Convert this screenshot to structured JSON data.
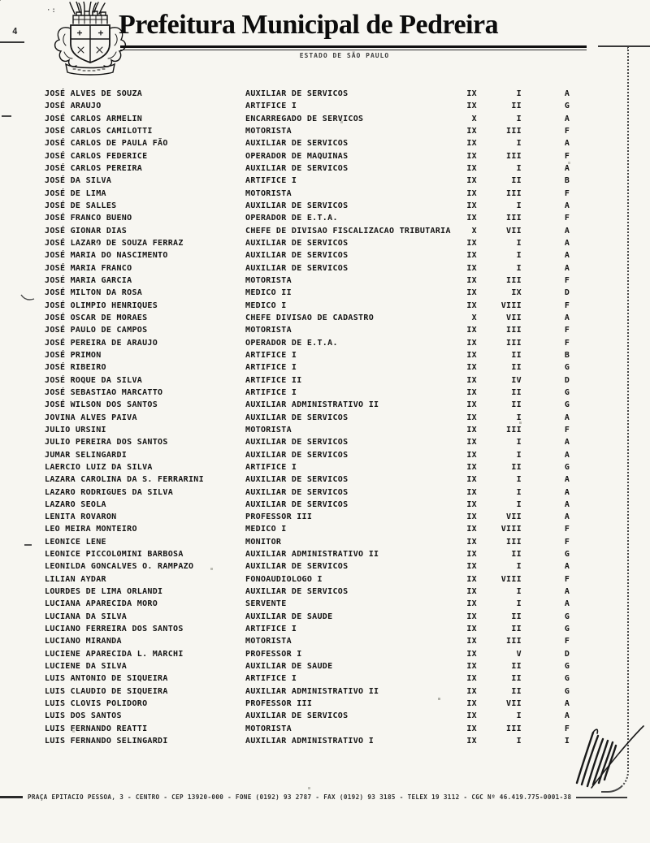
{
  "colors": {
    "ink": "#161616",
    "paper": "#f7f6f1"
  },
  "header": {
    "title": "Prefeitura Municipal de Pedreira",
    "subtitle": "ESTADO DE SÃO PAULO"
  },
  "table": {
    "rows": [
      {
        "name": "JOSÉ ALVES DE SOUZA",
        "position": "AUXILIAR DE SERVICOS",
        "col_a": "IX",
        "col_b": "I",
        "col_c": "A"
      },
      {
        "name": "JOSÉ ARAUJO",
        "position": "ARTIFICE I",
        "col_a": "IX",
        "col_b": "II",
        "col_c": "G"
      },
      {
        "name": "JOSÉ CARLOS ARMELIN",
        "position": "ENCARREGADO DE SERVICOS",
        "col_a": "X",
        "col_b": "I",
        "col_c": "A"
      },
      {
        "name": "JOSÉ CARLOS CAMILOTTI",
        "position": "MOTORISTA",
        "col_a": "IX",
        "col_b": "III",
        "col_c": "F"
      },
      {
        "name": "JOSÉ CARLOS DE PAULA FÃO",
        "position": "AUXILIAR DE SERVICOS",
        "col_a": "IX",
        "col_b": "I",
        "col_c": "A"
      },
      {
        "name": "JOSÉ CARLOS FEDERICE",
        "position": "OPERADOR DE MAQUINAS",
        "col_a": "IX",
        "col_b": "III",
        "col_c": "F"
      },
      {
        "name": "JOSÉ CARLOS PEREIRA",
        "position": "AUXILIAR DE SERVICOS",
        "col_a": "IX",
        "col_b": "I",
        "col_c": "A"
      },
      {
        "name": "JOSÉ DA SILVA",
        "position": "ARTIFICE I",
        "col_a": "IX",
        "col_b": "II",
        "col_c": "B"
      },
      {
        "name": "JOSÉ DE LIMA",
        "position": "MOTORISTA",
        "col_a": "IX",
        "col_b": "III",
        "col_c": "F"
      },
      {
        "name": "JOSÉ DE SALLES",
        "position": "AUXILIAR DE SERVICOS",
        "col_a": "IX",
        "col_b": "I",
        "col_c": "A"
      },
      {
        "name": "JOSÉ FRANCO BUENO",
        "position": "OPERADOR DE E.T.A.",
        "col_a": "IX",
        "col_b": "III",
        "col_c": "F"
      },
      {
        "name": "JOSÉ GIONAR DIAS",
        "position": "CHEFE DE DIVISAO FISCALIZACAO TRIBUTARIA",
        "col_a": "X",
        "col_b": "VII",
        "col_c": "A"
      },
      {
        "name": "JOSÉ LAZARO DE SOUZA FERRAZ",
        "position": "AUXILIAR DE SERVICOS",
        "col_a": "IX",
        "col_b": "I",
        "col_c": "A"
      },
      {
        "name": "JOSÉ MARIA DO NASCIMENTO",
        "position": "AUXILIAR DE SERVICOS",
        "col_a": "IX",
        "col_b": "I",
        "col_c": "A"
      },
      {
        "name": "JOSÉ MARIA FRANCO",
        "position": "AUXILIAR DE SERVICOS",
        "col_a": "IX",
        "col_b": "I",
        "col_c": "A"
      },
      {
        "name": "JOSÉ MARIA GARCIA",
        "position": "MOTORISTA",
        "col_a": "IX",
        "col_b": "III",
        "col_c": "F"
      },
      {
        "name": "JOSÉ MILTON DA ROSA",
        "position": "MEDICO II",
        "col_a": "IX",
        "col_b": "IX",
        "col_c": "D"
      },
      {
        "name": "JOSÉ OLIMPIO HENRIQUES",
        "position": "MEDICO I",
        "col_a": "IX",
        "col_b": "VIII",
        "col_c": "F"
      },
      {
        "name": "JOSÉ OSCAR DE MORAES",
        "position": "CHEFE DIVISAO DE CADASTRO",
        "col_a": "X",
        "col_b": "VII",
        "col_c": "A"
      },
      {
        "name": "JOSÉ PAULO DE CAMPOS",
        "position": "MOTORISTA",
        "col_a": "IX",
        "col_b": "III",
        "col_c": "F"
      },
      {
        "name": "JOSÉ PEREIRA DE ARAUJO",
        "position": "OPERADOR DE E.T.A.",
        "col_a": "IX",
        "col_b": "III",
        "col_c": "F"
      },
      {
        "name": "JOSÉ PRIMON",
        "position": "ARTIFICE I",
        "col_a": "IX",
        "col_b": "II",
        "col_c": "B"
      },
      {
        "name": "JOSÉ RIBEIRO",
        "position": "ARTIFICE I",
        "col_a": "IX",
        "col_b": "II",
        "col_c": "G"
      },
      {
        "name": "JOSÉ ROQUE DA SILVA",
        "position": "ARTIFICE II",
        "col_a": "IX",
        "col_b": "IV",
        "col_c": "D"
      },
      {
        "name": "JOSÉ SEBASTIAO MARCATTO",
        "position": "ARTIFICE I",
        "col_a": "IX",
        "col_b": "II",
        "col_c": "G"
      },
      {
        "name": "JOSÉ WILSON DOS SANTOS",
        "position": "AUXILIAR ADMINISTRATIVO II",
        "col_a": "IX",
        "col_b": "II",
        "col_c": "G"
      },
      {
        "name": "JOVINA ALVES PAIVA",
        "position": "AUXILIAR DE SERVICOS",
        "col_a": "IX",
        "col_b": "I",
        "col_c": "A"
      },
      {
        "name": "JULIO URSINI",
        "position": "MOTORISTA",
        "col_a": "IX",
        "col_b": "III",
        "col_c": "F"
      },
      {
        "name": "JULIO PEREIRA DOS SANTOS",
        "position": "AUXILIAR DE SERVICOS",
        "col_a": "IX",
        "col_b": "I",
        "col_c": "A"
      },
      {
        "name": "JUMAR SELINGARDI",
        "position": "AUXILIAR DE SERVICOS",
        "col_a": "IX",
        "col_b": "I",
        "col_c": "A"
      },
      {
        "name": "LAERCIO LUIZ DA SILVA",
        "position": "ARTIFICE I",
        "col_a": "IX",
        "col_b": "II",
        "col_c": "G"
      },
      {
        "name": "LAZARA CAROLINA DA S. FERRARINI",
        "position": "AUXILIAR DE SERVICOS",
        "col_a": "IX",
        "col_b": "I",
        "col_c": "A"
      },
      {
        "name": "LAZARO RODRIGUES DA SILVA",
        "position": "AUXILIAR DE SERVICOS",
        "col_a": "IX",
        "col_b": "I",
        "col_c": "A"
      },
      {
        "name": "LAZARO SEOLA",
        "position": "AUXILIAR DE SERVICOS",
        "col_a": "IX",
        "col_b": "I",
        "col_c": "A"
      },
      {
        "name": "LENITA ROVARON",
        "position": "PROFESSOR III",
        "col_a": "IX",
        "col_b": "VII",
        "col_c": "A"
      },
      {
        "name": "LEO MEIRA MONTEIRO",
        "position": "MEDICO I",
        "col_a": "IX",
        "col_b": "VIII",
        "col_c": "F"
      },
      {
        "name": "LEONICE LENE",
        "position": "MONITOR",
        "col_a": "IX",
        "col_b": "III",
        "col_c": "F"
      },
      {
        "name": "LEONICE PICCOLOMINI BARBOSA",
        "position": "AUXILIAR ADMINISTRATIVO II",
        "col_a": "IX",
        "col_b": "II",
        "col_c": "G"
      },
      {
        "name": "LEONILDA GONCALVES O. RAMPAZO",
        "position": "AUXILIAR DE SERVICOS",
        "col_a": "IX",
        "col_b": "I",
        "col_c": "A"
      },
      {
        "name": "LILIAN AYDAR",
        "position": "FONOAUDIOLOGO I",
        "col_a": "IX",
        "col_b": "VIII",
        "col_c": "F"
      },
      {
        "name": "LOURDES DE LIMA ORLANDI",
        "position": "AUXILIAR DE SERVICOS",
        "col_a": "IX",
        "col_b": "I",
        "col_c": "A"
      },
      {
        "name": "LUCIANA APARECIDA MORO",
        "position": "SERVENTE",
        "col_a": "IX",
        "col_b": "I",
        "col_c": "A"
      },
      {
        "name": "LUCIANA DA SILVA",
        "position": "AUXILIAR DE SAUDE",
        "col_a": "IX",
        "col_b": "II",
        "col_c": "G"
      },
      {
        "name": "LUCIANO FERREIRA DOS SANTOS",
        "position": "ARTIFICE I",
        "col_a": "IX",
        "col_b": "II",
        "col_c": "G"
      },
      {
        "name": "LUCIANO MIRANDA",
        "position": "MOTORISTA",
        "col_a": "IX",
        "col_b": "III",
        "col_c": "F"
      },
      {
        "name": "LUCIENE APARECIDA L. MARCHI",
        "position": "PROFESSOR I",
        "col_a": "IX",
        "col_b": "V",
        "col_c": "D"
      },
      {
        "name": "LUCIENE DA SILVA",
        "position": "AUXILIAR DE SAUDE",
        "col_a": "IX",
        "col_b": "II",
        "col_c": "G"
      },
      {
        "name": "LUIS ANTONIO DE SIQUEIRA",
        "position": "ARTIFICE I",
        "col_a": "IX",
        "col_b": "II",
        "col_c": "G"
      },
      {
        "name": "LUIS CLAUDIO DE SIQUEIRA",
        "position": "AUXILIAR ADMINISTRATIVO II",
        "col_a": "IX",
        "col_b": "II",
        "col_c": "G"
      },
      {
        "name": "LUIS CLOVIS POLIDORO",
        "position": "PROFESSOR III",
        "col_a": "IX",
        "col_b": "VII",
        "col_c": "A"
      },
      {
        "name": "LUIS DOS SANTOS",
        "position": "AUXILIAR DE SERVICOS",
        "col_a": "IX",
        "col_b": "I",
        "col_c": "A"
      },
      {
        "name": "LUIS FERNANDO REATTI",
        "position": "MOTORISTA",
        "col_a": "IX",
        "col_b": "III",
        "col_c": "F"
      },
      {
        "name": "LUIS FERNANDO SELINGARDI",
        "position": "AUXILIAR ADMINISTRATIVO I",
        "col_a": "IX",
        "col_b": "I",
        "col_c": "I"
      }
    ]
  },
  "footer": {
    "address": "PRAÇA EPITACIO PESSOA, 3 - CENTRO - CEP 13920-000 - FONE (0192) 93 2787 - FAX (0192) 93 3185 - TELEX 19 3112 - CGC Nº 46.419.775-0001-38"
  }
}
